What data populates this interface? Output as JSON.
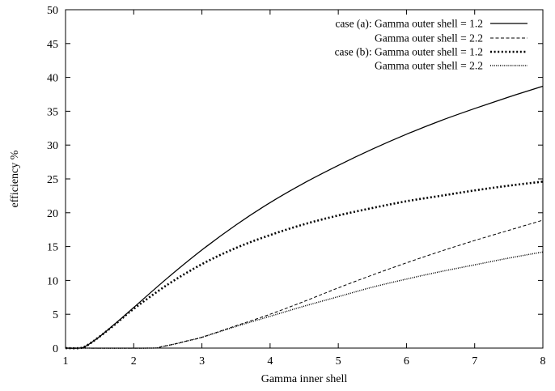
{
  "chart_data": {
    "type": "line",
    "title": "",
    "xlabel": "Gamma inner shell",
    "ylabel": "efficiency %",
    "xlim": [
      1,
      8
    ],
    "ylim": [
      0,
      50
    ],
    "xticks": [
      1,
      2,
      3,
      4,
      5,
      6,
      7,
      8
    ],
    "yticks": [
      0,
      5,
      10,
      15,
      20,
      25,
      30,
      35,
      40,
      45,
      50
    ],
    "grid": false,
    "legend_position": "top-right",
    "legend_prefixes": [
      "case (a):",
      "",
      "case (b):",
      ""
    ],
    "series": [
      {
        "name": "Gamma outer shell = 1.2",
        "style": "solid",
        "x": [
          1,
          1.2,
          1.3,
          1.5,
          1.75,
          2,
          2.5,
          3,
          3.5,
          4,
          4.5,
          5,
          5.5,
          6,
          6.5,
          7,
          7.5,
          8
        ],
        "y": [
          0,
          0,
          0.3,
          1.7,
          3.8,
          6.0,
          10.4,
          14.5,
          18.2,
          21.5,
          24.4,
          27.0,
          29.4,
          31.6,
          33.6,
          35.4,
          37.1,
          38.7
        ]
      },
      {
        "name": "Gamma outer shell = 2.2",
        "style": "dashed",
        "x": [
          1,
          2.25,
          2.4,
          2.6,
          2.8,
          3,
          3.5,
          4,
          4.5,
          5,
          5.5,
          6,
          6.5,
          7,
          7.5,
          8
        ],
        "y": [
          0,
          0,
          0.2,
          0.6,
          1.1,
          1.6,
          3.3,
          5.0,
          6.9,
          8.9,
          10.8,
          12.6,
          14.3,
          15.9,
          17.4,
          18.9
        ]
      },
      {
        "name": "Gamma outer shell = 1.2",
        "style": "dotted-bold",
        "x": [
          1,
          1.2,
          1.3,
          1.5,
          1.75,
          2,
          2.5,
          3,
          3.5,
          4,
          4.5,
          5,
          5.5,
          6,
          6.5,
          7,
          7.5,
          8
        ],
        "y": [
          0,
          0,
          0.3,
          1.7,
          3.7,
          5.8,
          9.4,
          12.4,
          14.8,
          16.7,
          18.3,
          19.6,
          20.7,
          21.7,
          22.5,
          23.3,
          24.0,
          24.6
        ]
      },
      {
        "name": "Gamma outer shell = 2.2",
        "style": "dotted-fine",
        "x": [
          1,
          2.25,
          2.4,
          2.6,
          2.8,
          3,
          3.5,
          4,
          4.5,
          5,
          5.5,
          6,
          6.5,
          7,
          7.5,
          8
        ],
        "y": [
          0,
          0,
          0.2,
          0.6,
          1.1,
          1.6,
          3.2,
          4.7,
          6.2,
          7.6,
          9.0,
          10.2,
          11.3,
          12.3,
          13.3,
          14.2
        ]
      }
    ]
  }
}
